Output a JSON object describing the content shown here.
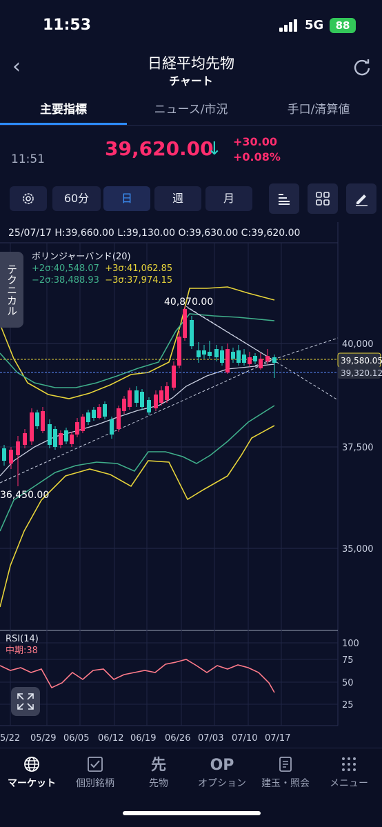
{
  "status_bar": {
    "time": "11:53",
    "network": "5G",
    "battery": "88"
  },
  "header": {
    "title": "日経平均先物",
    "subtitle": "チャート"
  },
  "tabs": [
    {
      "label": "主要指標",
      "active": true
    },
    {
      "label": "ニュース/市況",
      "active": false
    },
    {
      "label": "手口/清算値",
      "active": false
    }
  ],
  "quote": {
    "time": "11:51",
    "price": "39,620.00",
    "change": "+30.00",
    "change_pct": "+0.08%",
    "direction_icon": "↓"
  },
  "toolbar": {
    "interval_60": "60分",
    "day": "日",
    "week": "週",
    "month": "月",
    "selected": "日"
  },
  "ohlc": "25/07/17  H:39,660.00  L:39,130.00  O:39,630.00  C:39,620.00",
  "technical_tab": "テクニカル",
  "bollinger": {
    "title": "ボリンジャーバンド(20)",
    "p2": "+2σ:40,548.07",
    "p3": "+3σ:41,062.85",
    "m2": "−2σ:38,488.93",
    "m3": "−3σ:37,974.15"
  },
  "chart_data": {
    "type": "candlestick",
    "y_ticks": [
      "40,000",
      "37,500",
      "35,000"
    ],
    "price_labels": {
      "upper": "39,580.05",
      "lower": "39,320.12"
    },
    "annotations": {
      "high": "40,870.00",
      "low": "36,450.00"
    },
    "x_ticks": [
      "5/22",
      "05/29",
      "06/05",
      "06/12",
      "06/19",
      "06/26",
      "07/03",
      "07/10",
      "07/17"
    ],
    "rsi": {
      "title": "RSI(14)",
      "mid": "中期:38",
      "ticks": [
        "100",
        "75",
        "50",
        "25"
      ]
    }
  },
  "nav": [
    {
      "label": "マーケット",
      "icon": "globe-icon",
      "active": true
    },
    {
      "label": "個別銘柄",
      "icon": "check-icon",
      "active": false
    },
    {
      "label": "先物",
      "icon": "futures-icon",
      "active": false
    },
    {
      "label": "オプション",
      "icon": "op-icon",
      "active": false
    },
    {
      "label": "建玉・照会",
      "icon": "document-icon",
      "active": false
    },
    {
      "label": "メニュー",
      "icon": "grid-dots-icon",
      "active": false
    }
  ],
  "colors": {
    "up": "#ff2d6e",
    "down": "#2ad3c4",
    "accent": "#2d8cff",
    "band2": "#3fae8a",
    "band3": "#e6d33a"
  }
}
